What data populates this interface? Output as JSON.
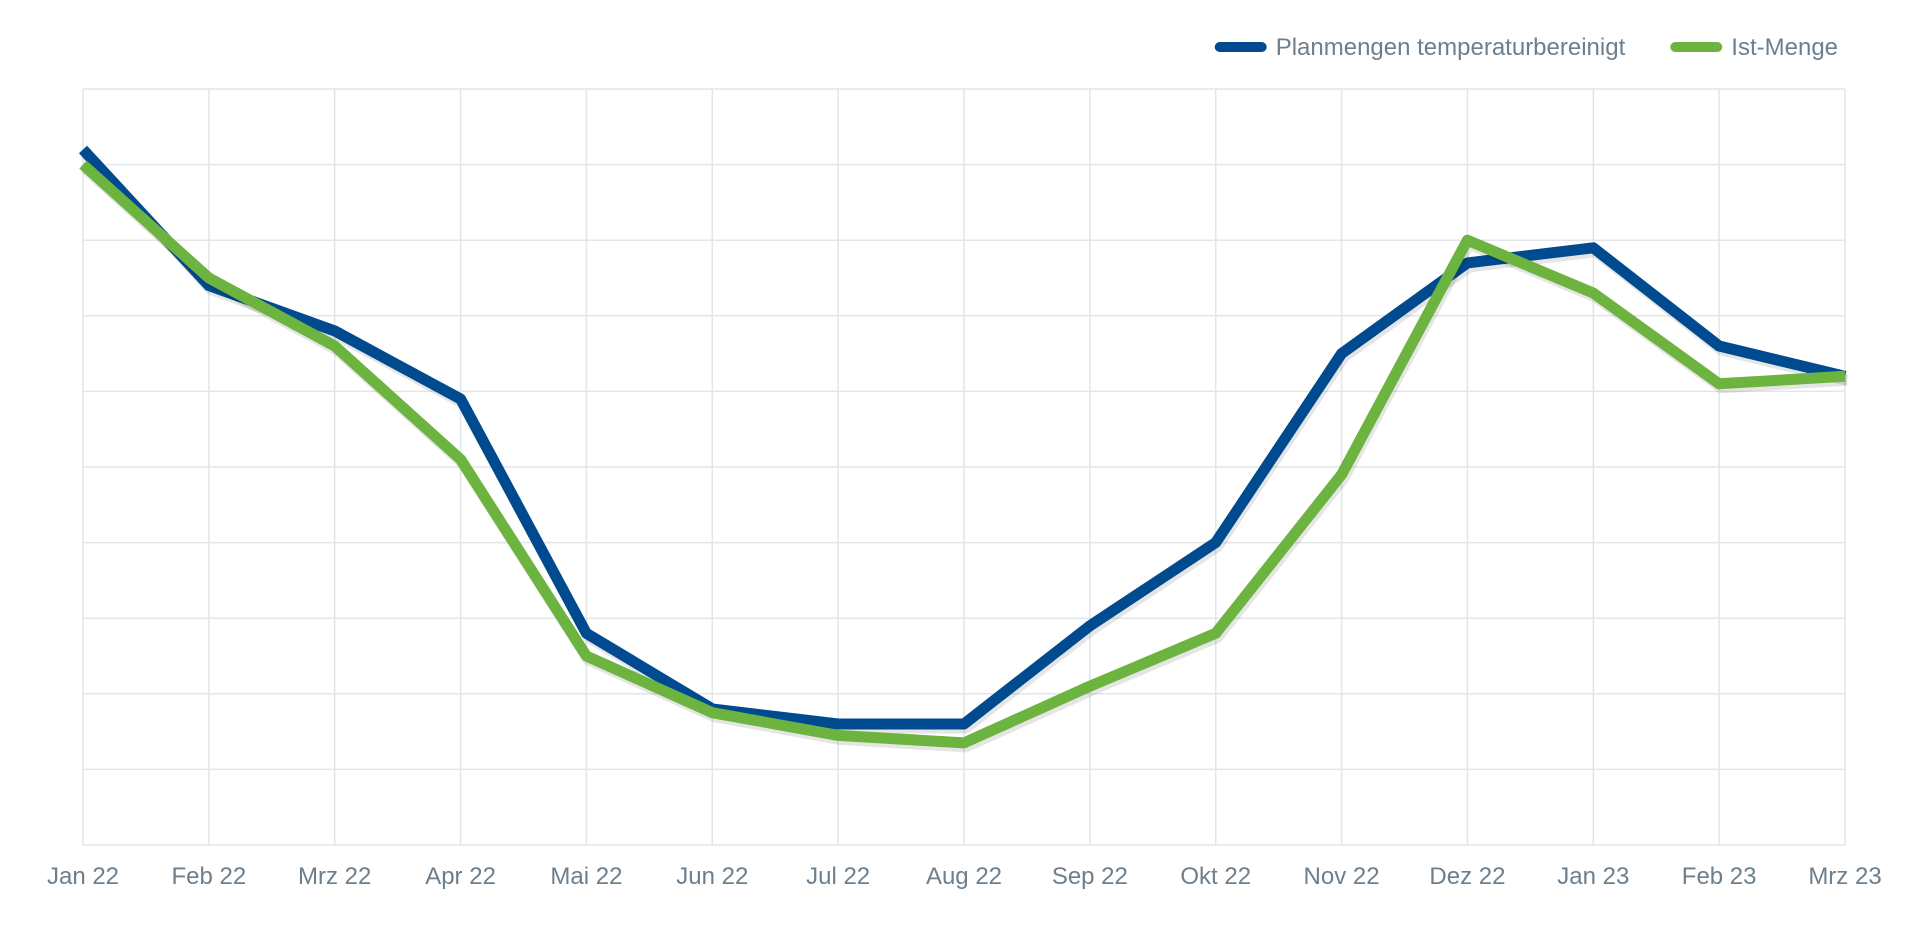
{
  "chart_data": {
    "type": "line",
    "title": "",
    "xlabel": "",
    "ylabel": "",
    "categories": [
      "Jan 22",
      "Feb 22",
      "Mrz 22",
      "Apr 22",
      "Mai 22",
      "Jun 22",
      "Jul 22",
      "Aug 22",
      "Sep 22",
      "Okt 22",
      "Nov 22",
      "Dez 22",
      "Jan 23",
      "Feb 23",
      "Mrz 23"
    ],
    "ylim": [
      0,
      10
    ],
    "y_gridlines": 10,
    "grid": true,
    "legend_position": "top-right",
    "series": [
      {
        "name": "Planmengen temperaturbereinigt",
        "color": "#004a8f",
        "values": [
          9.2,
          7.4,
          6.8,
          5.9,
          2.8,
          1.8,
          1.6,
          1.6,
          2.9,
          4.0,
          6.5,
          7.7,
          7.9,
          6.6,
          6.2
        ]
      },
      {
        "name": "Ist-Menge",
        "color": "#6db33f",
        "values": [
          9.0,
          7.5,
          6.6,
          5.1,
          2.5,
          1.75,
          1.45,
          1.35,
          2.1,
          2.8,
          4.9,
          8.0,
          7.3,
          6.1,
          6.2
        ]
      }
    ]
  }
}
